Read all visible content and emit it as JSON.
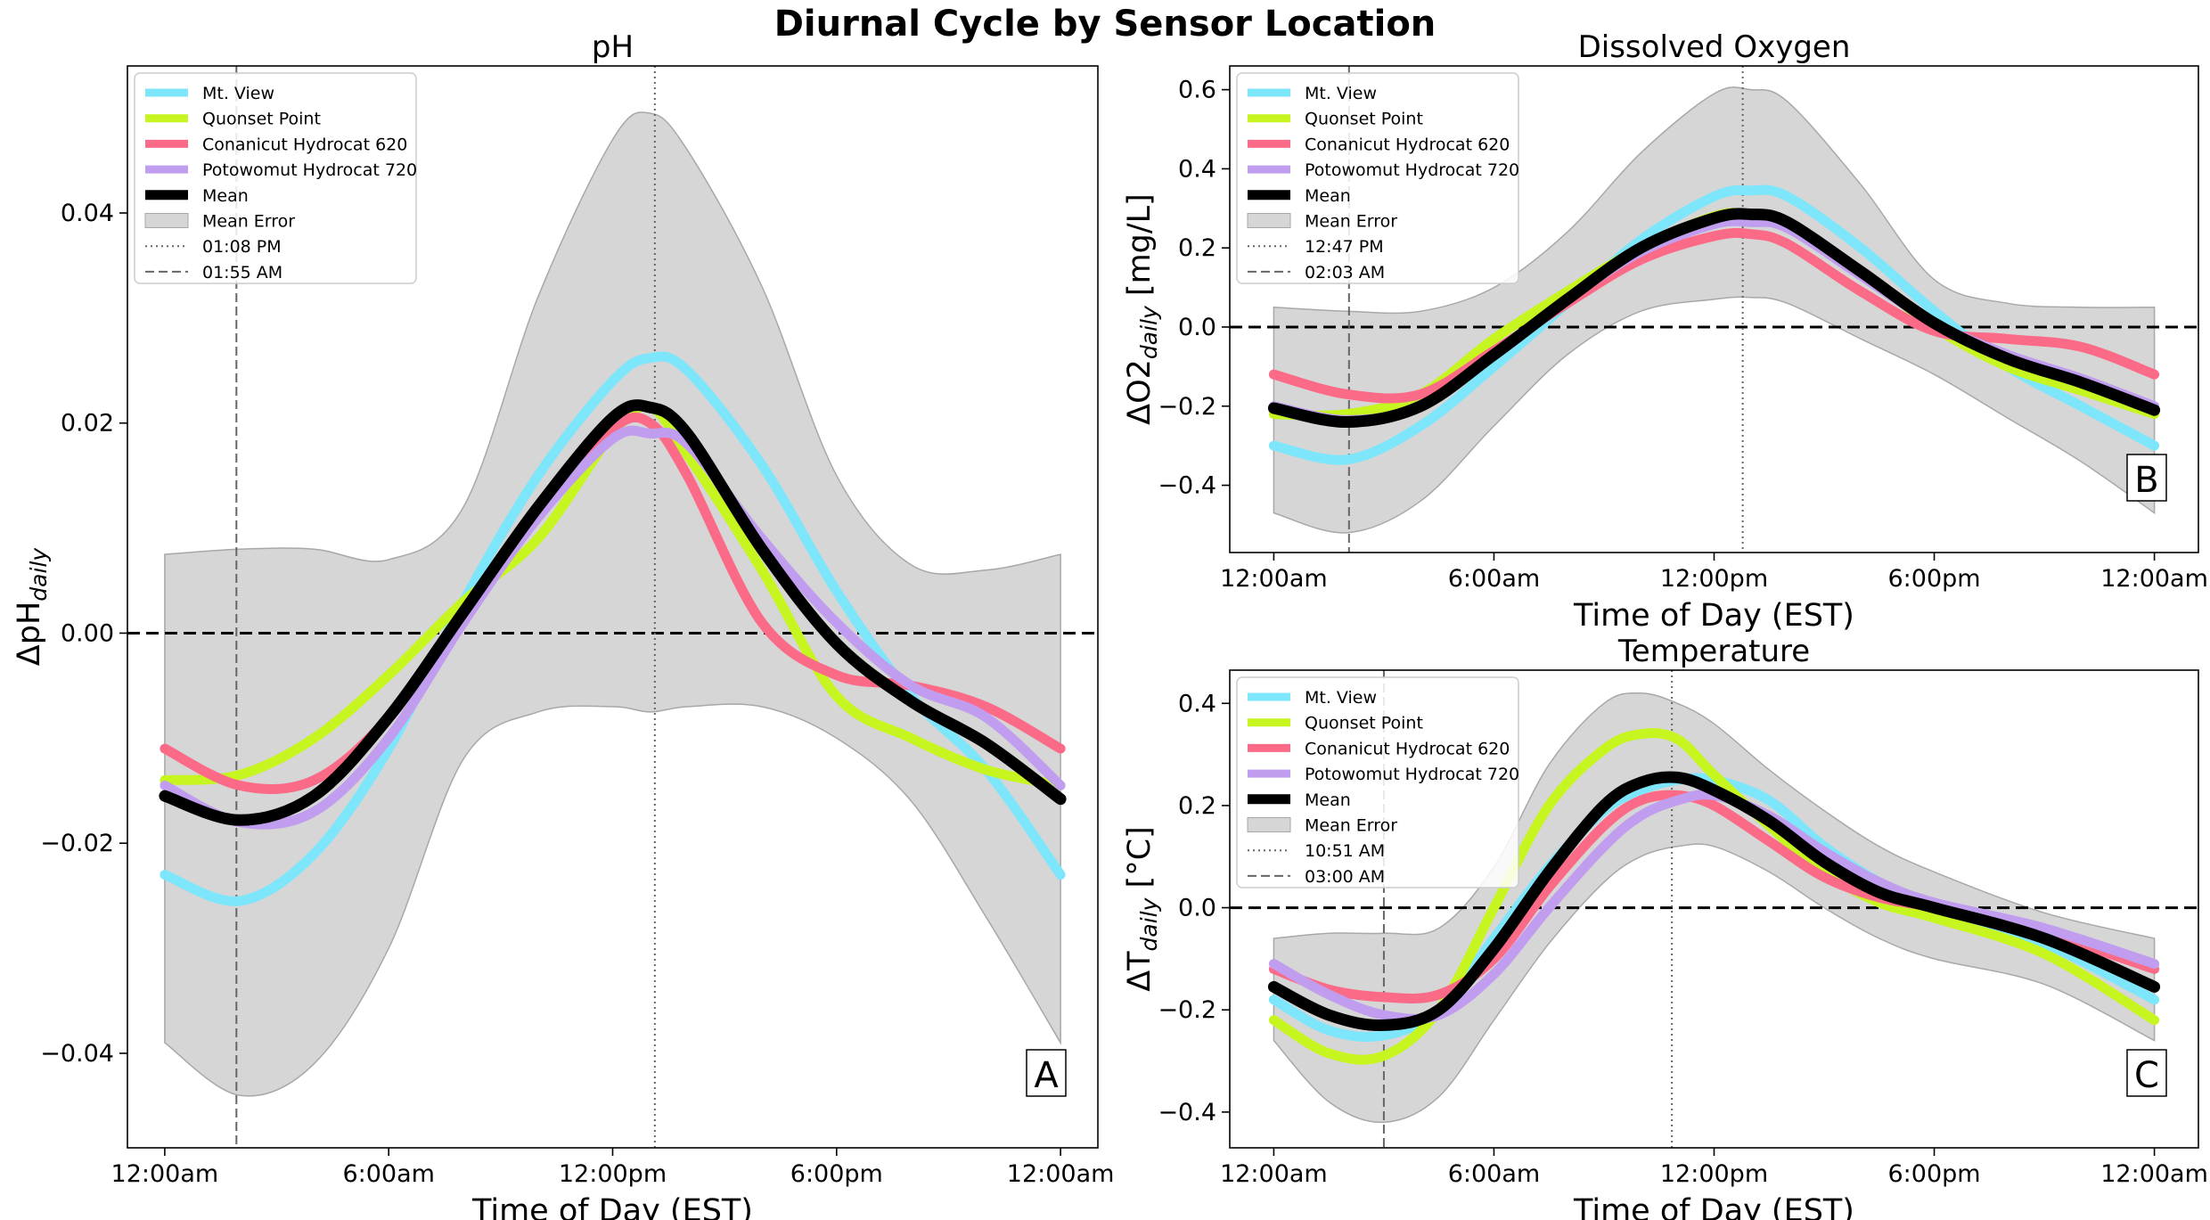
{
  "figure_title": "Diurnal Cycle by Sensor Location",
  "colors": {
    "mt_view": "#7ee6fb",
    "quonset": "#c6f51f",
    "conanicut": "#fb6a87",
    "potowomut": "#c19df0",
    "mean": "#000000",
    "mean_error": "#d6d6d6"
  },
  "chart_data": [
    {
      "type": "line",
      "panel": "A",
      "title": "pH",
      "xlabel": "Time of Day (EST)",
      "ylabel": "ΔpH",
      "ylabel_sub": "daily",
      "xlim": [
        -1,
        25
      ],
      "ylim": [
        -0.049,
        0.054
      ],
      "xticks": [
        0,
        6,
        12,
        18,
        24
      ],
      "xtick_labels": [
        "12:00am",
        "6:00am",
        "12:00pm",
        "6:00pm",
        "12:00am"
      ],
      "yticks": [
        -0.04,
        -0.02,
        0.0,
        0.02,
        0.04
      ],
      "ytick_labels": [
        "−0.04",
        "−0.02",
        "0.00",
        "0.02",
        "0.04"
      ],
      "grid": false,
      "legend_position": "upper-left",
      "peak_line": {
        "x": 13.13,
        "label": "01:08 PM"
      },
      "trough_line": {
        "x": 1.92,
        "label": "01:55 AM"
      },
      "x": [
        0,
        2,
        4,
        6,
        8,
        10,
        12,
        13,
        14,
        16,
        18,
        20,
        22,
        24
      ],
      "series": [
        {
          "name": "Mt. View",
          "key": "mt_view",
          "values": [
            -0.023,
            -0.0255,
            -0.021,
            -0.011,
            0.003,
            0.015,
            0.024,
            0.0262,
            0.025,
            0.016,
            0.004,
            -0.006,
            -0.013,
            -0.023
          ]
        },
        {
          "name": "Quonset Point",
          "key": "quonset",
          "values": [
            -0.014,
            -0.0135,
            -0.01,
            -0.004,
            0.003,
            0.009,
            0.019,
            0.0215,
            0.017,
            0.006,
            -0.006,
            -0.01,
            -0.013,
            -0.0145
          ]
        },
        {
          "name": "Conanicut Hydrocat 620",
          "key": "conanicut",
          "values": [
            -0.011,
            -0.0145,
            -0.014,
            -0.008,
            0.002,
            0.012,
            0.0195,
            0.02,
            0.015,
            0.001,
            -0.004,
            -0.005,
            -0.007,
            -0.011
          ]
        },
        {
          "name": "Potowomut Hydrocat 720",
          "key": "potowomut",
          "values": [
            -0.0145,
            -0.018,
            -0.017,
            -0.01,
            0.001,
            0.011,
            0.0185,
            0.019,
            0.018,
            0.009,
            0.001,
            -0.005,
            -0.008,
            -0.0145
          ]
        },
        {
          "name": "Mean",
          "key": "mean",
          "values": [
            -0.0155,
            -0.0178,
            -0.0155,
            -0.008,
            0.002,
            0.012,
            0.0205,
            0.0215,
            0.019,
            0.008,
            -0.001,
            -0.0065,
            -0.0105,
            -0.0158
          ]
        }
      ],
      "error_band": {
        "name": "Mean Error",
        "lower": [
          -0.039,
          -0.044,
          -0.041,
          -0.03,
          -0.012,
          -0.0075,
          -0.007,
          -0.0075,
          -0.007,
          -0.007,
          -0.01,
          -0.016,
          -0.027,
          -0.039
        ],
        "upper": [
          0.0075,
          0.008,
          0.008,
          0.007,
          0.012,
          0.032,
          0.047,
          0.0495,
          0.046,
          0.033,
          0.015,
          0.0065,
          0.006,
          0.0075
        ]
      }
    },
    {
      "type": "line",
      "panel": "B",
      "title": "Dissolved Oxygen",
      "xlabel": "Time of Day (EST)",
      "ylabel": "ΔO2",
      "ylabel_sub": "daily",
      "ylabel_unit": " [mg/L]",
      "xlim": [
        -1.2,
        25.2
      ],
      "ylim": [
        -0.57,
        0.66
      ],
      "xticks": [
        0,
        6,
        12,
        18,
        24
      ],
      "xtick_labels": [
        "12:00am",
        "6:00am",
        "12:00pm",
        "6:00pm",
        "12:00am"
      ],
      "yticks": [
        -0.4,
        -0.2,
        0.0,
        0.2,
        0.4,
        0.6
      ],
      "ytick_labels": [
        "−0.4",
        "−0.2",
        "0.0",
        "0.2",
        "0.4",
        "0.6"
      ],
      "grid": false,
      "legend_position": "upper-left",
      "peak_line": {
        "x": 12.78,
        "label": "12:47 PM"
      },
      "trough_line": {
        "x": 2.05,
        "label": "02:03 AM"
      },
      "x": [
        0,
        2,
        4,
        6,
        8,
        10,
        12,
        13,
        14,
        16,
        18,
        20,
        22,
        24
      ],
      "series": [
        {
          "name": "Mt. View",
          "key": "mt_view",
          "values": [
            -0.3,
            -0.335,
            -0.25,
            -0.1,
            0.06,
            0.22,
            0.33,
            0.345,
            0.33,
            0.2,
            0.04,
            -0.1,
            -0.2,
            -0.3
          ]
        },
        {
          "name": "Quonset Point",
          "key": "quonset",
          "values": [
            -0.22,
            -0.22,
            -0.17,
            -0.03,
            0.09,
            0.2,
            0.28,
            0.285,
            0.26,
            0.14,
            0.0,
            -0.1,
            -0.16,
            -0.22
          ]
        },
        {
          "name": "Conanicut Hydrocat 620",
          "key": "conanicut",
          "values": [
            -0.12,
            -0.17,
            -0.17,
            -0.06,
            0.06,
            0.17,
            0.23,
            0.235,
            0.21,
            0.09,
            -0.01,
            -0.03,
            -0.05,
            -0.12
          ]
        },
        {
          "name": "Potowomut Hydrocat 720",
          "key": "potowomut",
          "values": [
            -0.2,
            -0.235,
            -0.2,
            -0.07,
            0.07,
            0.19,
            0.26,
            0.265,
            0.25,
            0.13,
            0.01,
            -0.07,
            -0.13,
            -0.2
          ]
        },
        {
          "name": "Mean",
          "key": "mean",
          "values": [
            -0.205,
            -0.24,
            -0.2,
            -0.07,
            0.07,
            0.2,
            0.275,
            0.285,
            0.265,
            0.14,
            0.01,
            -0.08,
            -0.14,
            -0.21
          ]
        }
      ],
      "error_band": {
        "name": "Mean Error",
        "lower": [
          -0.47,
          -0.52,
          -0.44,
          -0.25,
          -0.07,
          0.04,
          0.07,
          0.075,
          0.06,
          -0.03,
          -0.12,
          -0.23,
          -0.34,
          -0.47
        ],
        "upper": [
          0.05,
          0.04,
          0.04,
          0.1,
          0.24,
          0.44,
          0.59,
          0.6,
          0.57,
          0.36,
          0.12,
          0.06,
          0.05,
          0.05
        ]
      }
    },
    {
      "type": "line",
      "panel": "C",
      "title": "Temperature",
      "xlabel": "Time of Day (EST)",
      "ylabel": "ΔT",
      "ylabel_sub": "daily",
      "ylabel_unit": " [°C]",
      "xlim": [
        -1.2,
        25.2
      ],
      "ylim": [
        -0.47,
        0.465
      ],
      "xticks": [
        0,
        6,
        12,
        18,
        24
      ],
      "xtick_labels": [
        "12:00am",
        "6:00am",
        "12:00pm",
        "6:00pm",
        "12:00am"
      ],
      "yticks": [
        -0.4,
        -0.2,
        0.0,
        0.2,
        0.4
      ],
      "ytick_labels": [
        "−0.4",
        "−0.2",
        "0.0",
        "0.2",
        "0.4"
      ],
      "grid": false,
      "legend_position": "upper-left",
      "peak_line": {
        "x": 10.85,
        "label": "10:51 AM"
      },
      "trough_line": {
        "x": 3.0,
        "label": "03:00 AM"
      },
      "x": [
        0,
        1.5,
        3,
        4.5,
        6,
        7.5,
        9,
        10,
        11,
        12,
        13.5,
        15,
        16.5,
        18,
        21,
        24
      ],
      "series": [
        {
          "name": "Mt. View",
          "key": "mt_view",
          "values": [
            -0.18,
            -0.24,
            -0.25,
            -0.2,
            -0.06,
            0.08,
            0.19,
            0.23,
            0.25,
            0.25,
            0.21,
            0.12,
            0.05,
            0.0,
            -0.07,
            -0.18
          ]
        },
        {
          "name": "Quonset Point",
          "key": "quonset",
          "values": [
            -0.22,
            -0.285,
            -0.29,
            -0.2,
            0.0,
            0.2,
            0.31,
            0.34,
            0.33,
            0.26,
            0.16,
            0.07,
            0.01,
            -0.02,
            -0.09,
            -0.22
          ]
        },
        {
          "name": "Conanicut Hydrocat 620",
          "key": "conanicut",
          "values": [
            -0.12,
            -0.16,
            -0.175,
            -0.17,
            -0.1,
            0.04,
            0.16,
            0.21,
            0.22,
            0.2,
            0.13,
            0.06,
            0.02,
            0.0,
            -0.05,
            -0.12
          ]
        },
        {
          "name": "Potowomut Hydrocat 720",
          "key": "potowomut",
          "values": [
            -0.11,
            -0.17,
            -0.21,
            -0.21,
            -0.13,
            0.0,
            0.12,
            0.18,
            0.21,
            0.22,
            0.18,
            0.11,
            0.05,
            0.01,
            -0.04,
            -0.11
          ]
        },
        {
          "name": "Mean",
          "key": "mean",
          "values": [
            -0.155,
            -0.21,
            -0.23,
            -0.2,
            -0.08,
            0.07,
            0.2,
            0.245,
            0.255,
            0.23,
            0.17,
            0.09,
            0.03,
            0.0,
            -0.06,
            -0.155
          ]
        }
      ],
      "error_band": {
        "name": "Mean Error",
        "lower": [
          -0.26,
          -0.38,
          -0.42,
          -0.37,
          -0.22,
          -0.07,
          0.05,
          0.1,
          0.12,
          0.12,
          0.07,
          0.0,
          -0.06,
          -0.1,
          -0.15,
          -0.26
        ],
        "upper": [
          -0.06,
          -0.05,
          -0.05,
          -0.04,
          0.08,
          0.28,
          0.4,
          0.42,
          0.4,
          0.36,
          0.27,
          0.19,
          0.12,
          0.07,
          -0.01,
          -0.06
        ]
      }
    }
  ]
}
